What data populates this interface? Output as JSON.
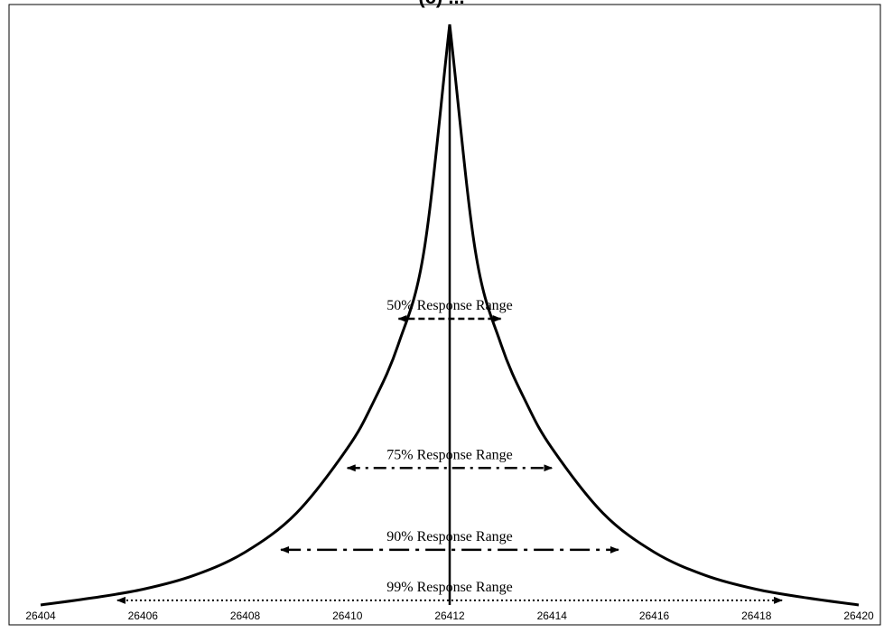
{
  "chart_data": {
    "type": "line",
    "title": "(c) ...",
    "xlabel": "",
    "ylabel": "",
    "xlim": [
      26404,
      26420
    ],
    "x_ticks": [
      26404,
      26406,
      26408,
      26410,
      26412,
      26414,
      26416,
      26418,
      26420
    ],
    "x_tick_labels": [
      "26404",
      "26406",
      "26408",
      "26410",
      "26412",
      "26414",
      "26416",
      "26418",
      "26420"
    ],
    "peak_x": 26412,
    "series": [
      {
        "x": [
          26404,
          26405,
          26406,
          26407,
          26408,
          26409,
          26410,
          26410.5,
          26411,
          26411.5,
          26412,
          26412.5,
          26413,
          26413.5,
          26414,
          26415,
          26416,
          26417,
          26418,
          26419,
          26420
        ],
        "y": [
          0.0,
          0.012,
          0.027,
          0.051,
          0.091,
          0.158,
          0.27,
          0.348,
          0.45,
          0.611,
          1.0,
          0.611,
          0.45,
          0.348,
          0.27,
          0.158,
          0.091,
          0.051,
          0.027,
          0.012,
          0.0
        ]
      }
    ],
    "ranges": [
      {
        "label": "50% Response Range",
        "x_left": 26411.0,
        "x_right": 26413.0,
        "y": 0.493,
        "line_style": "dashed"
      },
      {
        "label": "75% Response Range",
        "x_left": 26410.0,
        "x_right": 26414.0,
        "y": 0.236,
        "line_style": "dash-dot"
      },
      {
        "label": "90% Response Range",
        "x_left": 26408.7,
        "x_right": 26415.3,
        "y": 0.095,
        "line_style": "long-dash-dot"
      },
      {
        "label": "99% Response Range",
        "x_left": 26405.5,
        "x_right": 26418.5,
        "y": 0.008,
        "line_style": "dotted"
      }
    ],
    "grid": false,
    "legend": "none"
  }
}
